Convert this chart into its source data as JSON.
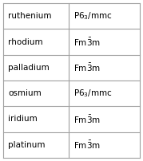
{
  "rows": [
    [
      "ruthenium",
      "P6_3/mmc"
    ],
    [
      "rhodium",
      "Fm3m"
    ],
    [
      "palladium",
      "Fm3m"
    ],
    [
      "osmium",
      "P6_3/mmc"
    ],
    [
      "iridium",
      "Fm3m"
    ],
    [
      "platinum",
      "Fm3m"
    ]
  ],
  "background_color": "#ffffff",
  "border_color": "#a0a0a0",
  "text_color": "#000000",
  "font_size": 7.5,
  "col_split": 0.48,
  "fig_width": 1.79,
  "fig_height": 2.02,
  "dpi": 100
}
